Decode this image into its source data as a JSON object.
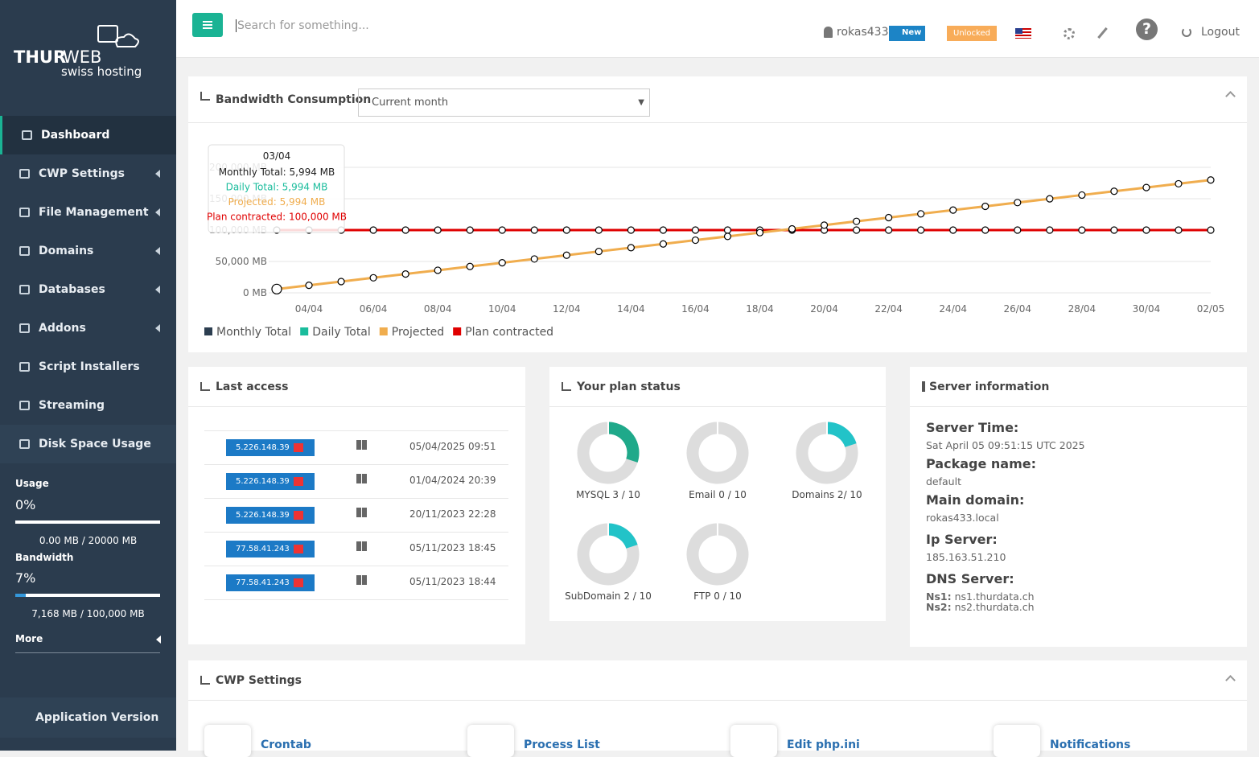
{
  "logo": {
    "brand_a": "THUR",
    "brand_b": "WEB",
    "tagline": "swiss hosting"
  },
  "topbar": {
    "search_placeholder": "Search for something...",
    "user": "rokas433",
    "badge_new": "New",
    "badge_unlocked": "Unlocked",
    "logout": "Logout"
  },
  "sidebar": {
    "menu": [
      "Dashboard",
      "CWP Settings",
      "File Management",
      "Domains",
      "Databases",
      "Addons",
      "Script Installers",
      "Streaming",
      "Disk Space Usage"
    ],
    "usage": {
      "label": "Usage",
      "value": 0,
      "value_label": "0%",
      "detail": "0.00 MB / 20000 MB"
    },
    "bandwidth": {
      "label": "Bandwidth",
      "value": 7,
      "value_label": "7%",
      "detail": "7,168 MB / 100,000 MB"
    },
    "more": "More",
    "app_version": "Application Version"
  },
  "bandwidth_panel": {
    "select": "Current month"
  },
  "chart_data": {
    "type": "line",
    "title": "Bandwidth Consumption",
    "categories": [
      null,
      "04/04",
      null,
      "06/04",
      null,
      "08/04",
      null,
      "10/04",
      null,
      "12/04",
      null,
      "14/04",
      null,
      "16/04",
      null,
      "18/04",
      null,
      "20/04",
      null,
      "22/04",
      null,
      "24/04",
      null,
      "26/04",
      null,
      "28/04",
      null,
      "30/04",
      null,
      "02/05"
    ],
    "series": [
      {
        "name": "Monthly Total",
        "color": "#2c3e50",
        "values": [
          5994,
          null,
          null,
          null,
          null,
          null,
          null,
          null,
          null,
          null,
          null,
          null,
          null,
          null,
          null,
          null,
          null,
          null,
          null,
          null,
          null,
          null,
          null,
          null,
          null,
          null,
          null,
          null,
          null,
          null
        ]
      },
      {
        "name": "Daily Total",
        "color": "#1abc9c",
        "values": [
          5994,
          null,
          null,
          null,
          null,
          null,
          null,
          null,
          null,
          null,
          null,
          null,
          null,
          null,
          null,
          null,
          null,
          null,
          null,
          null,
          null,
          null,
          null,
          null,
          null,
          null,
          null,
          null,
          null,
          null
        ]
      },
      {
        "name": "Projected",
        "color": "#f0ad4e",
        "values": [
          5994,
          11988,
          17982,
          23976,
          29970,
          35964,
          41958,
          47952,
          53946,
          59940,
          65934,
          71928,
          77922,
          83916,
          89910,
          95904,
          101898,
          107892,
          113886,
          119880,
          125874,
          131868,
          137862,
          143856,
          149850,
          155844,
          161838,
          167832,
          173826,
          179820
        ]
      },
      {
        "name": "Plan contracted",
        "color": "#e00000",
        "values": [
          100000,
          100000,
          100000,
          100000,
          100000,
          100000,
          100000,
          100000,
          100000,
          100000,
          100000,
          100000,
          100000,
          100000,
          100000,
          100000,
          100000,
          100000,
          100000,
          100000,
          100000,
          100000,
          100000,
          100000,
          100000,
          100000,
          100000,
          100000,
          100000,
          100000
        ]
      }
    ],
    "ylim": [
      0,
      200000
    ],
    "yticks": [
      {
        "value": 0,
        "label": "0 MB"
      },
      {
        "value": 50000,
        "label": "50,000 MB"
      },
      {
        "value": 100000,
        "label": "100,000 MB"
      },
      {
        "value": 150000,
        "label": "150,000 MB"
      },
      {
        "value": 200000,
        "label": "200,000 MB"
      }
    ],
    "grid": true,
    "legend": "bottom-left",
    "tooltip": {
      "title": "03/04",
      "lines": [
        "Monthly Total: 5,994 MB",
        "Daily Total: 5,994 MB",
        "Projected: 5,994 MB",
        "Plan contracted: 100,000 MB"
      ]
    }
  },
  "last_access": {
    "title": "Last access",
    "rows": [
      {
        "ip": "5.226.148.39",
        "date": "05/04/2025 09:51"
      },
      {
        "ip": "5.226.148.39",
        "date": "01/04/2024 20:39"
      },
      {
        "ip": "5.226.148.39",
        "date": "20/11/2023 22:28"
      },
      {
        "ip": "77.58.41.243",
        "date": "05/11/2023 18:45"
      },
      {
        "ip": "77.58.41.243",
        "date": "05/11/2023 18:44"
      }
    ]
  },
  "plan_status": {
    "title": "Your plan status",
    "items": [
      {
        "label": "MYSQL 3 / 10",
        "used": 3,
        "total": 10,
        "color": "#1fa98a"
      },
      {
        "label": "Email 0 / 10",
        "used": 0,
        "total": 10,
        "color": "#22c3c8"
      },
      {
        "label": "Domains 2/ 10",
        "used": 2,
        "total": 10,
        "color": "#22c3c8"
      },
      {
        "label": "SubDomain 2 / 10",
        "used": 2,
        "total": 10,
        "color": "#22c3c8"
      },
      {
        "label": "FTP 0 / 10",
        "used": 0,
        "total": 10,
        "color": "#22c3c8"
      }
    ]
  },
  "server_info": {
    "title": "Server information",
    "fields": [
      {
        "label": "Server Time:",
        "value": "Sat April 05 09:51:15 UTC 2025"
      },
      {
        "label": "Package name:",
        "value": "default"
      },
      {
        "label": "Main domain:",
        "value": "rokas433.local"
      },
      {
        "label": "Ip Server:",
        "value": "185.163.51.210"
      }
    ],
    "dns_label": "DNS Server:",
    "ns": [
      {
        "label": "Ns1:",
        "value": "ns1.thurdata.ch"
      },
      {
        "label": "Ns2:",
        "value": "ns2.thurdata.ch"
      }
    ]
  },
  "cwp_settings": {
    "title": "CWP Settings",
    "items": [
      "Crontab",
      "Process List",
      "Edit php.ini",
      "Notifications"
    ]
  }
}
